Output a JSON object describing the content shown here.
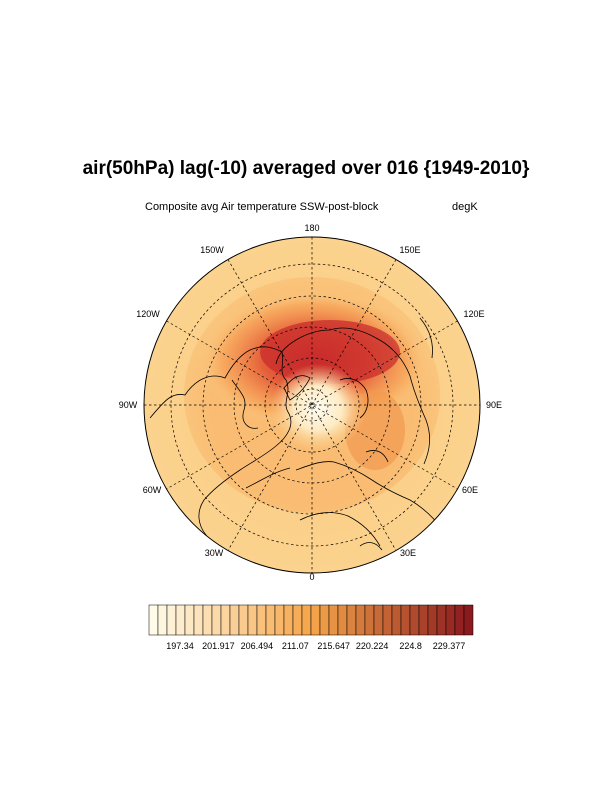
{
  "title": "air(50hPa) lag(-10) averaged over 016 {1949-2010}",
  "subtitle": "Composite avg Air temperature SSW-post-block",
  "units": "degK",
  "longitude_labels": {
    "n": "180",
    "nw": "150W",
    "ne": "150E",
    "wnw": "120W",
    "ene": "120E",
    "w": "90W",
    "e": "90E",
    "wsw": "60W",
    "ese": "60E",
    "sw": "30W",
    "se": "30E",
    "s": "0"
  },
  "colorbar": {
    "tick_labels": [
      "197.34",
      "201.917",
      "206.494",
      "211.07",
      "215.647",
      "220.224",
      "224.8",
      "229.377"
    ],
    "n_boxes": 36,
    "color_low": "#fffbe8",
    "color_mid": "#f6a64a",
    "color_high": "#8b1a1e"
  },
  "colors": {
    "background_field": "#fbd08a",
    "warm_core": "#c72a2a",
    "cold_core": "#fffbe8"
  }
}
